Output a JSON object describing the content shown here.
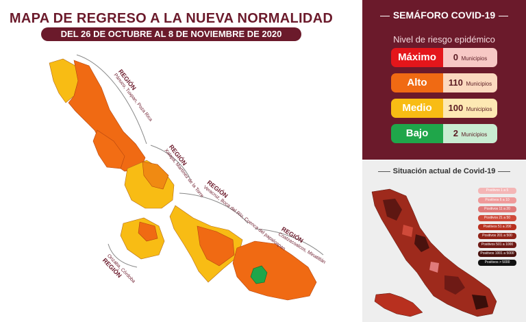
{
  "header": {
    "title": "MAPA DE REGRESO A LA NUEVA NORMALIDAD",
    "subtitle": "DEL 26 DE OCTUBRE AL 8 DE NOVIEMBRE DE 2020"
  },
  "regions": [
    {
      "label": "REGIÓN",
      "cities": "Pánuco, Tuxpan, Poza Rica"
    },
    {
      "label": "REGIÓN",
      "cities": "Xalapa, Martínez de la Torre"
    },
    {
      "label": "REGIÓN",
      "cities": "Veracruz, Boca del Río, Cuenca del papaloapan"
    },
    {
      "label": "REGIÓN",
      "cities": "Orizaba, Córdoba"
    },
    {
      "label": "REGIÓN",
      "cities": "Coatzacoalcos, Minatitlán"
    }
  ],
  "semaforo": {
    "title": "SEMÁFORO COVID-19",
    "subtitle": "Nivel de riesgo epidémico",
    "unit": "Municipios",
    "levels": [
      {
        "name": "Máximo",
        "count": "0",
        "color": "#e4161b",
        "light": "#f7c8c5"
      },
      {
        "name": "Alto",
        "count": "110",
        "color": "#f06a13",
        "light": "#fbd9bf"
      },
      {
        "name": "Medio",
        "count": "100",
        "color": "#f8bc14",
        "light": "#fde8b3"
      },
      {
        "name": "Bajo",
        "count": "2",
        "color": "#1fa64a",
        "light": "#c9ecd2"
      }
    ]
  },
  "situacion": {
    "title": "Situación actual de Covid-19",
    "legend": [
      {
        "label": "Positivos 1 a 5",
        "color": "#f4b6b6"
      },
      {
        "label": "Positivos 6 a 10",
        "color": "#ef9a9a"
      },
      {
        "label": "Positivos 11 a 20",
        "color": "#e07a7a"
      },
      {
        "label": "Positivos 21 a 50",
        "color": "#cf4a3a"
      },
      {
        "label": "Positivos 51 a 200",
        "color": "#b8301f"
      },
      {
        "label": "Positivos 201 a 500",
        "color": "#8f2318"
      },
      {
        "label": "Positivos 501 a 1000",
        "color": "#6e1a15"
      },
      {
        "label": "Positivos 1001 a 5000",
        "color": "#4a120e"
      },
      {
        "label": "Positivos > 5000",
        "color": "#111111"
      }
    ]
  }
}
